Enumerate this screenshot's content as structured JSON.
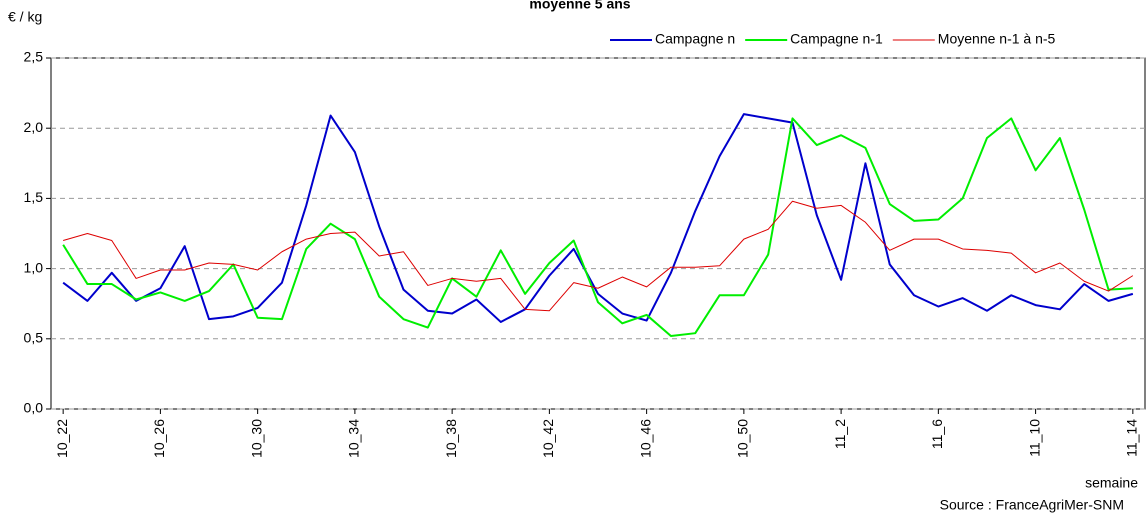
{
  "chart_data": {
    "type": "line",
    "title": "moyenne 5 ans",
    "y_label": "€ / kg",
    "x_label": "semaine",
    "source": "Source : FranceAgriMer-SNM",
    "categories": [
      "10_22",
      null,
      null,
      null,
      "10_26",
      null,
      null,
      null,
      "10_30",
      null,
      null,
      null,
      "10_34",
      null,
      null,
      null,
      "10_38",
      null,
      null,
      null,
      "10_42",
      null,
      null,
      null,
      "10_46",
      null,
      null,
      null,
      "10_50",
      null,
      null,
      null,
      "11_2",
      null,
      null,
      null,
      "11_6",
      null,
      null,
      null,
      "11_10",
      null,
      null,
      null,
      "11_14"
    ],
    "series": [
      {
        "name": "Campagne n",
        "color": "#0000cc",
        "width": 2,
        "values": [
          0.9,
          0.77,
          0.97,
          0.77,
          0.86,
          1.16,
          0.64,
          0.66,
          0.72,
          0.9,
          1.45,
          2.09,
          1.83,
          1.3,
          0.85,
          0.7,
          0.68,
          0.78,
          0.62,
          0.71,
          0.95,
          1.14,
          0.82,
          0.68,
          0.63,
          0.97,
          1.41,
          1.8,
          2.1,
          2.07,
          2.04,
          1.38,
          0.92,
          1.75,
          1.03,
          0.81,
          0.73,
          0.79,
          0.7,
          0.81,
          0.74,
          0.71,
          0.89,
          0.77,
          0.82
        ]
      },
      {
        "name": "Campagne n-1",
        "color": "#00ee00",
        "width": 2,
        "values": [
          1.17,
          0.89,
          0.89,
          0.78,
          0.83,
          0.77,
          0.84,
          1.03,
          0.65,
          0.64,
          1.14,
          1.32,
          1.21,
          0.8,
          0.64,
          0.58,
          0.93,
          0.8,
          1.13,
          0.82,
          1.04,
          1.2,
          0.76,
          0.61,
          0.67,
          0.52,
          0.54,
          0.81,
          0.81,
          1.1,
          2.07,
          1.88,
          1.95,
          1.86,
          1.46,
          1.34,
          1.35,
          1.5,
          1.93,
          2.07,
          1.7,
          1.93,
          1.42,
          0.85,
          0.86
        ]
      },
      {
        "name": "Moyenne n-1 à n-5",
        "color": "#dd0000",
        "width": 1,
        "values": [
          1.2,
          1.25,
          1.2,
          0.93,
          0.99,
          0.99,
          1.04,
          1.03,
          0.99,
          1.12,
          1.21,
          1.25,
          1.26,
          1.09,
          1.12,
          0.88,
          0.93,
          0.91,
          0.93,
          0.71,
          0.7,
          0.9,
          0.86,
          0.94,
          0.87,
          1.01,
          1.01,
          1.02,
          1.21,
          1.28,
          1.48,
          1.43,
          1.45,
          1.33,
          1.13,
          1.21,
          1.21,
          1.14,
          1.13,
          1.11,
          0.97,
          1.04,
          0.91,
          0.84,
          0.95
        ]
      }
    ],
    "ylim": [
      0,
      2.5
    ],
    "yticks": [
      {
        "value": 0,
        "label": "0,0"
      },
      {
        "value": 0.5,
        "label": "0,5"
      },
      {
        "value": 1,
        "label": "1,0"
      },
      {
        "value": 1.5,
        "label": "1,5"
      },
      {
        "value": 2,
        "label": "2,0"
      },
      {
        "value": 2.5,
        "label": "2,5"
      }
    ],
    "grid": true
  }
}
